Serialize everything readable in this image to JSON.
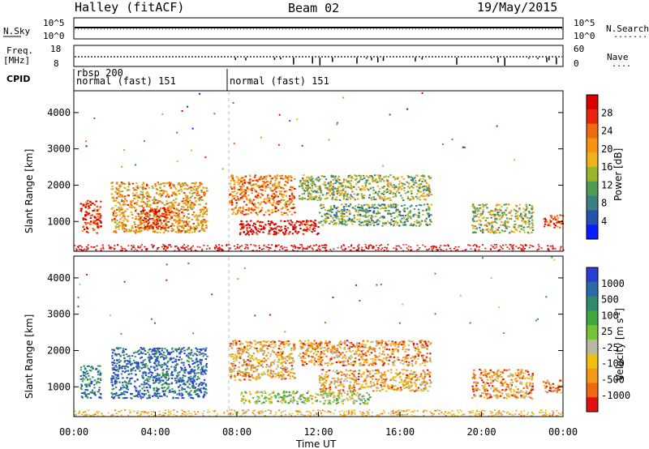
{
  "header": {
    "station": "Halley (fitACF)",
    "beam": "Beam 02",
    "date": "19/May/2015"
  },
  "panels": {
    "nsky": {
      "left_label": "N.Sky",
      "right_label": "N.Search",
      "left_ticks": [
        "10^5",
        "10^0"
      ],
      "right_ticks": [
        "10^5",
        "10^0"
      ],
      "dots": "......."
    },
    "freq": {
      "left_label_1": "Freq.",
      "left_label_2": "[MHz]",
      "left_ticks": [
        "18",
        "8"
      ],
      "right_ticks": [
        "60",
        "0"
      ],
      "right_label": "Nave",
      "dots": "...."
    },
    "cpid": {
      "label": "CPID",
      "entries": [
        {
          "line1": "rbsp 200",
          "line2": "normal (fast) 151",
          "start_hour": 0
        },
        {
          "line1": "",
          "line2": "normal (fast) 151",
          "start_hour": 7.55
        }
      ]
    }
  },
  "chart_data": [
    {
      "type": "heatmap",
      "name": "power",
      "ylabel": "Slant Range [km]",
      "yticks": [
        "1000",
        "2000",
        "3000",
        "4000"
      ],
      "ylim": [
        180,
        4600
      ],
      "xlim": [
        0,
        24
      ],
      "colorbar": {
        "label": "Power [dB]",
        "ticks": [
          "4",
          "8",
          "12",
          "16",
          "20",
          "24",
          "28"
        ],
        "range": [
          0,
          32
        ],
        "colors": [
          "#0a1cff",
          "#2452b0",
          "#3a7f82",
          "#4f9a55",
          "#9bb52c",
          "#f0b21a",
          "#f79312",
          "#f06a10",
          "#e8240c",
          "#d80000"
        ]
      },
      "regions": [
        {
          "t0": 0.3,
          "t1": 1.3,
          "r0": 700,
          "r1": 1600,
          "level": 0.85
        },
        {
          "t0": 1.8,
          "t1": 6.5,
          "r0": 700,
          "r1": 2100,
          "level": 0.62
        },
        {
          "t0": 3.2,
          "t1": 4.8,
          "r0": 800,
          "r1": 1400,
          "level": 0.88
        },
        {
          "t0": 7.6,
          "t1": 10.8,
          "r0": 1200,
          "r1": 2300,
          "level": 0.7
        },
        {
          "t0": 8.1,
          "t1": 12.0,
          "r0": 650,
          "r1": 1050,
          "level": 0.95
        },
        {
          "t0": 11.0,
          "t1": 17.5,
          "r0": 1600,
          "r1": 2300,
          "level": 0.45
        },
        {
          "t0": 12.0,
          "t1": 17.5,
          "r0": 900,
          "r1": 1500,
          "level": 0.35
        },
        {
          "t0": 19.5,
          "t1": 22.5,
          "r0": 700,
          "r1": 1500,
          "level": 0.45
        },
        {
          "t0": 23.0,
          "t1": 24.0,
          "r0": 850,
          "r1": 1200,
          "level": 0.8
        }
      ]
    },
    {
      "type": "heatmap",
      "name": "velocity",
      "ylabel": "Slant Range [km]",
      "yticks": [
        "1000",
        "2000",
        "3000",
        "4000"
      ],
      "ylim": [
        180,
        4600
      ],
      "xlim": [
        0,
        24
      ],
      "xticks": [
        "00:00",
        "04:00",
        "08:00",
        "12:00",
        "16:00",
        "20:00",
        "00:00"
      ],
      "xlabel": "Time UT",
      "colorbar": {
        "label": "Velocity [m s^-1]",
        "ticks": [
          "1000",
          "500",
          "100",
          "25",
          "-25",
          "-100",
          "-500",
          "-1000"
        ],
        "range": [
          -1000,
          1000
        ],
        "colors": [
          "#2a3fd6",
          "#2a6aa8",
          "#2e8b6c",
          "#40a640",
          "#78c23a",
          "#b8b8a4",
          "#f0c010",
          "#f49818",
          "#f06810",
          "#e01010"
        ]
      },
      "regions": [
        {
          "t0": 0.3,
          "t1": 1.3,
          "r0": 700,
          "r1": 1600,
          "level": 0.2
        },
        {
          "t0": 1.8,
          "t1": 6.5,
          "r0": 700,
          "r1": 2100,
          "level": 0.15
        },
        {
          "t0": 7.6,
          "t1": 10.8,
          "r0": 1200,
          "r1": 2300,
          "level": 0.7
        },
        {
          "t0": 8.1,
          "t1": 14.5,
          "r0": 550,
          "r1": 900,
          "level": 0.5
        },
        {
          "t0": 11.0,
          "t1": 17.5,
          "r0": 1600,
          "r1": 2300,
          "level": 0.75
        },
        {
          "t0": 12.0,
          "t1": 17.5,
          "r0": 900,
          "r1": 1500,
          "level": 0.7
        },
        {
          "t0": 19.5,
          "t1": 22.5,
          "r0": 700,
          "r1": 1500,
          "level": 0.75
        },
        {
          "t0": 23.0,
          "t1": 24.0,
          "r0": 850,
          "r1": 1200,
          "level": 0.8
        }
      ]
    }
  ]
}
